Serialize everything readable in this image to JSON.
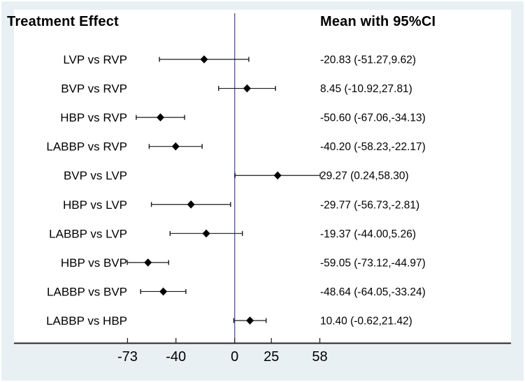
{
  "header": {
    "left_title": "Treatment Effect",
    "right_title": "Mean with 95%CI"
  },
  "chart_data": {
    "type": "scatter",
    "variant": "forest-plot",
    "title": "Treatment Effect",
    "value_column_title": "Mean with 95%CI",
    "xlabel": "",
    "ylabel": "",
    "xlim": [
      -150,
      188
    ],
    "x_ticks": [
      -73,
      -40,
      0,
      25,
      58
    ],
    "zero_line_x": 0,
    "legend": "none",
    "grid": false,
    "rows": [
      {
        "label": "LVP vs RVP",
        "mean": -20.83,
        "lo": -51.27,
        "hi": 9.62,
        "text": "-20.83 (-51.27,9.62)"
      },
      {
        "label": "BVP vs RVP",
        "mean": 8.45,
        "lo": -10.92,
        "hi": 27.81,
        "text": "8.45 (-10.92,27.81)"
      },
      {
        "label": "HBP vs RVP",
        "mean": -50.6,
        "lo": -67.06,
        "hi": -34.13,
        "text": "-50.60 (-67.06,-34.13)"
      },
      {
        "label": "LABBP vs RVP",
        "mean": -40.2,
        "lo": -58.23,
        "hi": -22.17,
        "text": "-40.20 (-58.23,-22.17)"
      },
      {
        "label": "BVP vs LVP",
        "mean": 29.27,
        "lo": 0.24,
        "hi": 58.3,
        "text": "29.27 (0.24,58.30)"
      },
      {
        "label": "HBP vs LVP",
        "mean": -29.77,
        "lo": -56.73,
        "hi": -2.81,
        "text": "-29.77 (-56.73,-2.81)"
      },
      {
        "label": "LABBP vs LVP",
        "mean": -19.37,
        "lo": -44.0,
        "hi": 5.26,
        "text": "-19.37 (-44.00,5.26)"
      },
      {
        "label": "HBP vs BVP",
        "mean": -59.05,
        "lo": -73.12,
        "hi": -44.97,
        "text": "-59.05 (-73.12,-44.97)"
      },
      {
        "label": "LABBP vs BVP",
        "mean": -48.64,
        "lo": -64.05,
        "hi": -33.24,
        "text": "-48.64 (-64.05,-33.24)"
      },
      {
        "label": "LABBP vs HBP",
        "mean": 10.4,
        "lo": -0.62,
        "hi": 21.42,
        "text": "10.40 (-0.62,21.42)"
      }
    ]
  },
  "colors": {
    "page_background": "#e9f0f4",
    "plot_background": "#ffffff",
    "zero_line": "#5c5cab",
    "axis_line": "#262626",
    "marker": "#000000",
    "ci_line": "#1a1a1a",
    "text": "#000000"
  }
}
